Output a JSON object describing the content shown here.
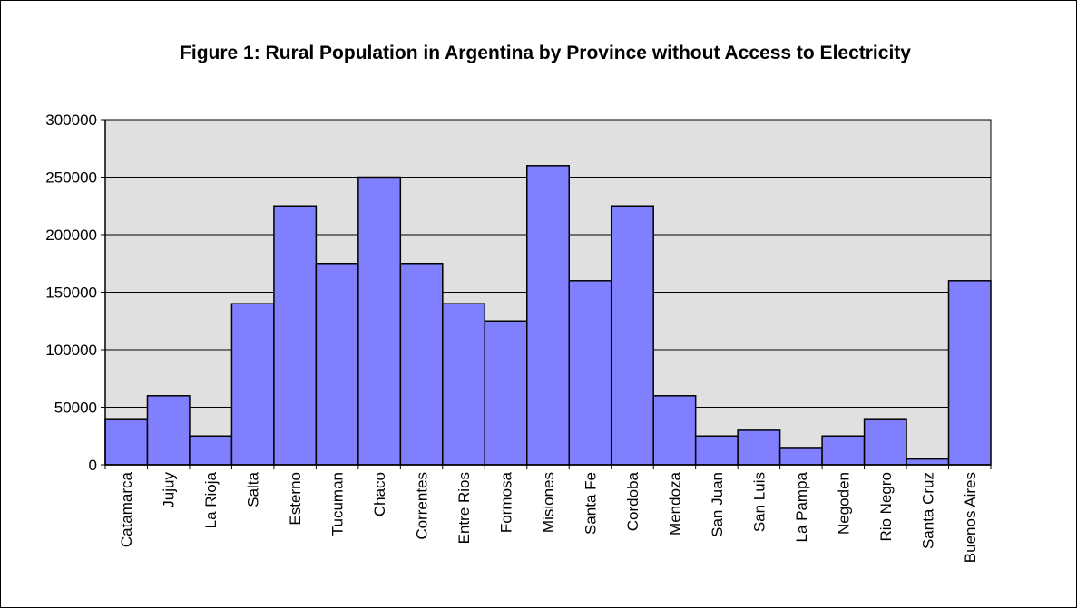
{
  "chart_data": {
    "type": "bar",
    "title": "Figure 1:  Rural Population in Argentina by Province without Access to Electricity",
    "xlabel": "",
    "ylabel": "",
    "ylim": [
      0,
      300000
    ],
    "yticks": [
      "0",
      "50000",
      "100000",
      "150000",
      "200000",
      "250000",
      "300000"
    ],
    "categories": [
      "Catamarca",
      "Jujuy",
      "La Rioja",
      "Salta",
      "Esterno",
      "Tucuman",
      "Chaco",
      "Correntes",
      "Entre Rios",
      "Formosa",
      "Misiones",
      "Santa Fe",
      "Cordoba",
      "Mendoza",
      "San Juan",
      "San Luis",
      "La Pampa",
      "Negoden",
      "Rio Negro",
      "Santa Cruz",
      "Buenos Aires"
    ],
    "values": [
      40000,
      60000,
      25000,
      140000,
      225000,
      175000,
      250000,
      175000,
      140000,
      125000,
      260000,
      160000,
      225000,
      60000,
      25000,
      30000,
      15000,
      25000,
      40000,
      5000,
      160000
    ],
    "grid": true,
    "legend": "none",
    "colors": {
      "bar": "#8080ff",
      "plot_background": "#e0e0e0",
      "grid": "#000000",
      "border": "#000000"
    }
  }
}
